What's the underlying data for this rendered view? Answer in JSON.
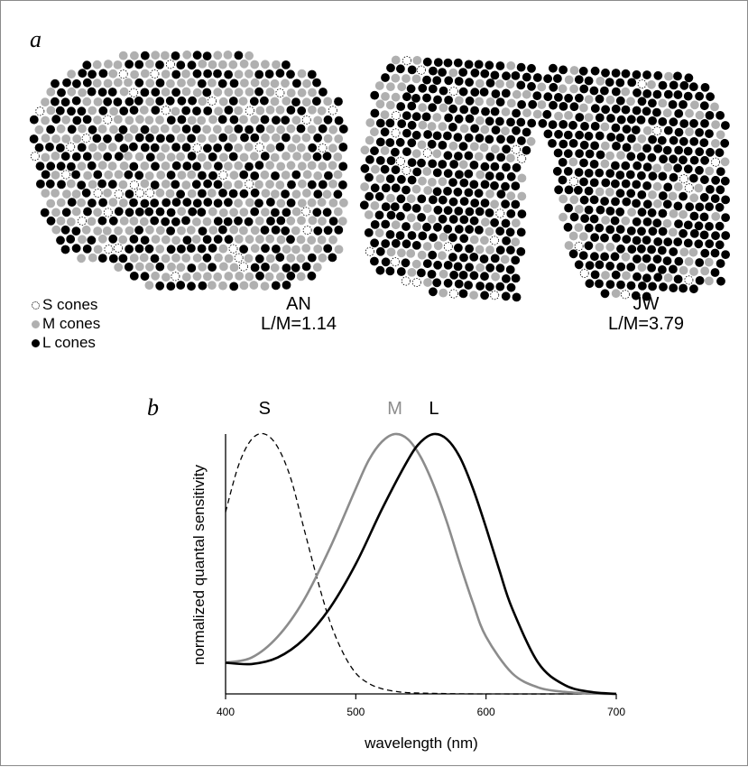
{
  "panel_a": {
    "letter": "a",
    "legend": [
      {
        "label": "S cones",
        "fill": "#ffffff",
        "stroke": "#000000",
        "dashed": true
      },
      {
        "label": "M cones",
        "fill": "#b0b0b0",
        "stroke": "#b0b0b0",
        "dashed": false
      },
      {
        "label": "L cones",
        "fill": "#000000",
        "stroke": "#000000",
        "dashed": false
      }
    ],
    "mosaics": [
      {
        "subject": "AN",
        "ratio_text": "L/M=1.14",
        "l_fraction": 0.5
      },
      {
        "subject": "JW",
        "ratio_text": "L/M=3.79",
        "l_fraction": 0.75
      }
    ]
  },
  "panel_b": {
    "letter": "b",
    "chart_data": {
      "type": "line",
      "xlabel": "wavelength (nm)",
      "ylabel": "normalized quantal sensitivity",
      "xlim": [
        400,
        700
      ],
      "xticks": [
        400,
        500,
        600,
        700
      ],
      "ylim": [
        0,
        1
      ],
      "grid": false,
      "series": [
        {
          "name": "S",
          "color": "#000000",
          "dashed": true,
          "x": [
            400,
            410,
            420,
            430,
            440,
            450,
            460,
            470,
            480,
            490,
            500,
            510,
            520,
            530,
            540,
            560,
            600,
            700
          ],
          "y": [
            0.7,
            0.88,
            0.98,
            1.0,
            0.95,
            0.83,
            0.64,
            0.45,
            0.28,
            0.16,
            0.08,
            0.04,
            0.02,
            0.01,
            0.005,
            0.002,
            0.0,
            0.0
          ]
        },
        {
          "name": "M",
          "color": "#8c8c8c",
          "dashed": false,
          "x": [
            400,
            420,
            440,
            460,
            480,
            500,
            510,
            520,
            530,
            540,
            550,
            560,
            570,
            580,
            590,
            600,
            620,
            640,
            660,
            680,
            700
          ],
          "y": [
            0.12,
            0.14,
            0.22,
            0.36,
            0.56,
            0.79,
            0.9,
            0.97,
            1.0,
            0.98,
            0.91,
            0.8,
            0.66,
            0.5,
            0.35,
            0.22,
            0.08,
            0.025,
            0.008,
            0.002,
            0.0
          ]
        },
        {
          "name": "L",
          "color": "#000000",
          "dashed": false,
          "x": [
            400,
            420,
            440,
            460,
            480,
            500,
            520,
            540,
            550,
            560,
            570,
            580,
            590,
            600,
            610,
            620,
            640,
            660,
            680,
            700
          ],
          "y": [
            0.12,
            0.115,
            0.14,
            0.21,
            0.33,
            0.5,
            0.71,
            0.9,
            0.97,
            1.0,
            0.98,
            0.91,
            0.79,
            0.64,
            0.48,
            0.33,
            0.12,
            0.035,
            0.008,
            0.0
          ]
        }
      ]
    }
  }
}
